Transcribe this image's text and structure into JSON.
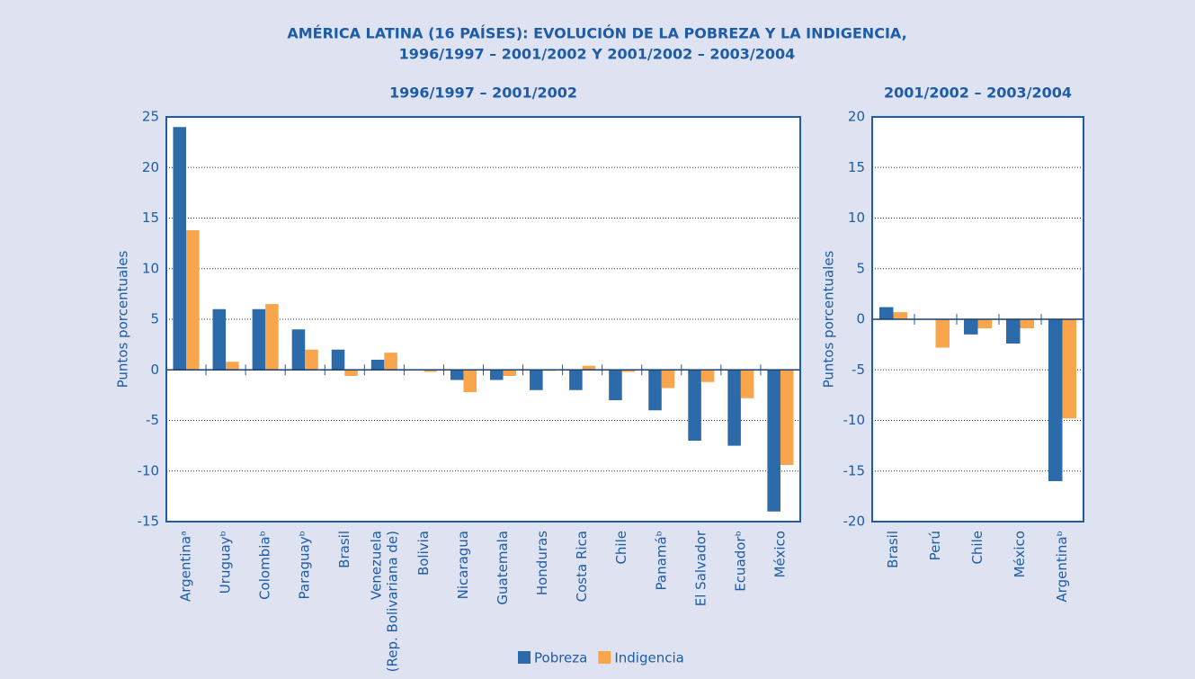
{
  "title": "AMÉRICA LATINA (16 PAÍSES): EVOLUCIÓN DE LA POBREZA Y LA INDIGENCIA,",
  "subtitle": "1996/1997 – 2001/2002  Y 2001/2002 – 2003/2004",
  "chart_data": [
    {
      "type": "bar",
      "title": "1996/1997 – 2001/2002",
      "y_label": "Puntos porcentuales",
      "categories": [
        "Argentinaᵃ",
        "Uruguayᵇ",
        "Colombiaᵇ",
        "Paraguayᵇ",
        "Brasil",
        "Venezuela (Rep. Bolivariana de)",
        "Bolivia",
        "Nicaragua",
        "Guatemala",
        "Honduras",
        "Costa Rica",
        "Chile",
        "Panamáᵇ",
        "El Salvador",
        "Ecuadorᵇ",
        "México"
      ],
      "series": [
        {
          "name": "Pobreza",
          "color": "#2d6aaa",
          "values": [
            24,
            6,
            6,
            4,
            2,
            1,
            0,
            -1,
            -1,
            -2,
            -2,
            -3,
            -4,
            -7,
            -7.5,
            -14
          ]
        },
        {
          "name": "Indigencia",
          "color": "#f8a54b",
          "values": [
            13.8,
            0.8,
            6.5,
            2,
            -0.6,
            1.7,
            -0.2,
            -2.2,
            -0.6,
            -0.1,
            0.4,
            -0.2,
            -1.8,
            -1.2,
            -2.8,
            -9.4
          ]
        }
      ],
      "ylim": [
        -15,
        25
      ],
      "yticks": [
        -15,
        -10,
        -5,
        0,
        5,
        10,
        15,
        20,
        25
      ],
      "grid": true
    },
    {
      "type": "bar",
      "title": "2001/2002 – 2003/2004",
      "y_label": "Puntos porcentuales",
      "categories": [
        "Brasil",
        "Perú",
        "Chile",
        "México",
        "Argentinaᵇ"
      ],
      "series": [
        {
          "name": "Pobreza",
          "color": "#2d6aaa",
          "values": [
            1.2,
            0,
            -1.5,
            -2.4,
            -16
          ]
        },
        {
          "name": "Indigencia",
          "color": "#f8a54b",
          "values": [
            0.7,
            -2.8,
            -0.9,
            -0.9,
            -9.8
          ]
        }
      ],
      "ylim": [
        -20,
        20
      ],
      "yticks": [
        -20,
        -15,
        -10,
        -5,
        0,
        5,
        10,
        15,
        20
      ],
      "grid": true
    }
  ]
}
